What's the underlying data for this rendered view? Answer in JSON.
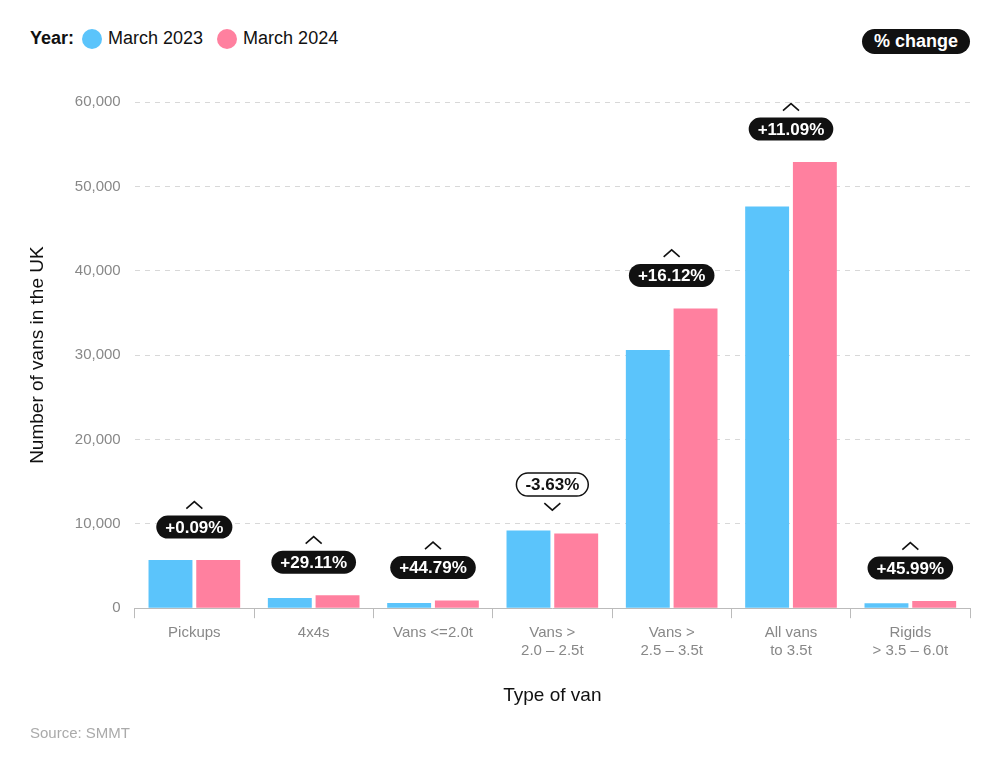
{
  "chart_data": {
    "type": "bar",
    "legend_title": "Year:",
    "legend": "top-left",
    "x_label": "Type of van",
    "y_label": "Number of vans in the UK",
    "source": "Source: SMMT",
    "categories": [
      "Pickups",
      "4x4s",
      "Vans <=2.0t",
      [
        "Vans >",
        "2.0 – 2.5t"
      ],
      [
        "Vans >",
        "2.5 – 3.5t"
      ],
      [
        "All vans",
        "to 3.5t"
      ],
      [
        "Rigids",
        "> 3.5 – 6.0t"
      ]
    ],
    "series": [
      {
        "name": "March 2023",
        "color": "#5bc4fb",
        "values": [
          5700,
          1200,
          620,
          9200,
          30600,
          47600,
          580
        ]
      },
      {
        "name": "March 2024",
        "color": "#ff809f",
        "values": [
          5705,
          1549,
          898,
          8866,
          35533,
          52879,
          847
        ]
      }
    ],
    "annotations": {
      "title": "% change",
      "values": [
        0.09,
        29.11,
        44.79,
        -3.63,
        16.12,
        11.09,
        45.99
      ],
      "value_labels": [
        "+0.09%",
        "+29.11%",
        "+44.79%",
        "-3.63%",
        "+16.12%",
        "+11.09%",
        "+45.99%"
      ]
    },
    "ylim": [
      0,
      60000
    ],
    "yticks": [
      0,
      {
        "value": 10000,
        "label": "10,000"
      },
      {
        "value": 20000,
        "label": "20,000"
      },
      {
        "value": 30000,
        "label": "30,000"
      },
      {
        "value": 40000,
        "label": "40,000"
      },
      {
        "value": 50000,
        "label": "50,000"
      },
      {
        "value": 60000,
        "label": "60,000"
      }
    ],
    "grid": true
  }
}
